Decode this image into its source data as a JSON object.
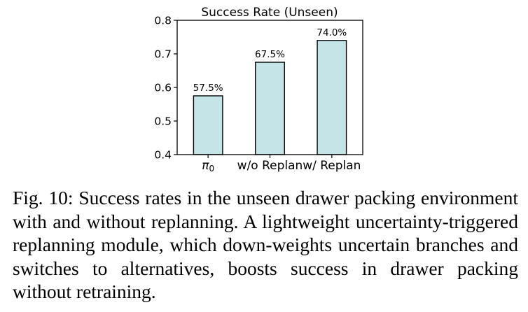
{
  "chart_data": {
    "type": "bar",
    "title": "Success Rate (Unseen)",
    "categories": [
      "π0",
      "w/o Replan",
      "w/ Replan"
    ],
    "values": [
      0.575,
      0.675,
      0.74
    ],
    "data_labels": [
      "57.5%",
      "67.5%",
      "74.0%"
    ],
    "xlabel": "",
    "ylabel": "",
    "ylim": [
      0.4,
      0.8
    ],
    "yticks": [
      "0.4",
      "0.5",
      "0.6",
      "0.7",
      "0.8"
    ],
    "grid": false,
    "bar_color": "#c4e4e8",
    "bar_edge_color": "#000000"
  },
  "caption": {
    "label": "Fig. 10:",
    "text": "Success rates in the unseen drawer packing environ­ment with and without replanning. A lightweight uncertainty-triggered replanning module, which down-weights uncertain branches and switches to alternatives, boosts success in drawer packing without retraining."
  }
}
